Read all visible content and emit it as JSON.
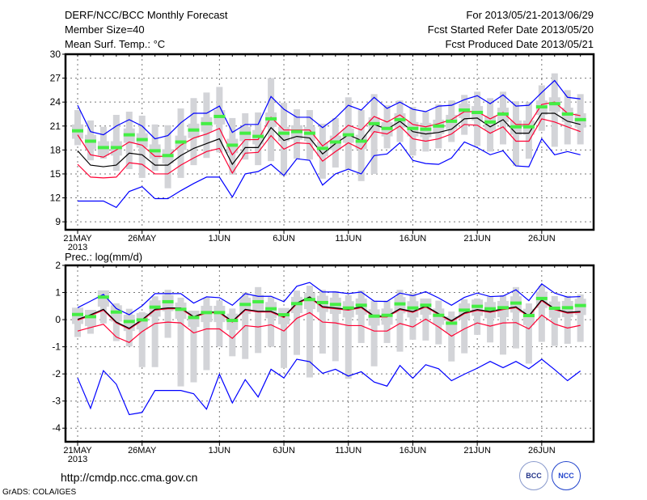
{
  "header": {
    "title": "DERF/NCC/BCC Monthly Forecast",
    "member_size": "Member Size=40",
    "variable": "Mean Surf. Temp.: °C",
    "period": "For 2013/05/21-2013/06/29",
    "started": "Fcst Started Refer Date 2013/05/20",
    "produced": "Fcst Produced Date 2013/05/21"
  },
  "footer": {
    "url": "http://cmdp.ncc.cma.gov.cn",
    "grads": "GrADS: COLA/IGES",
    "logo_bcc": "BCC",
    "logo_ncc": "NCC"
  },
  "colors": {
    "max_min": "#0000ff",
    "spread": "#ff0033",
    "mean": "#000000",
    "median": "#44ee44",
    "box": "#d3d4d8"
  },
  "chart_data": [
    {
      "type": "box",
      "title": "Mean Surf. Temp.: °C",
      "ylim": [
        8,
        30
      ],
      "yticks": [
        9,
        12,
        15,
        18,
        21,
        24,
        27,
        30
      ],
      "ytick_labels": [
        "9",
        "12",
        "15",
        "18",
        "21",
        "24",
        "27",
        "30"
      ],
      "xtick_days": [
        0,
        5,
        11,
        16,
        21,
        26,
        31,
        36
      ],
      "xtick_labels": [
        "21MAY",
        "26MAY",
        "1JUN",
        "6JUN",
        "11JUN",
        "16JUN",
        "21JUN",
        "26JUN"
      ],
      "xyear": "2013",
      "grid": true,
      "box_q3_offset": 0.8,
      "box_q1_offset": -1.0,
      "max": [
        23.6,
        20.3,
        19.9,
        21.0,
        21.8,
        21.0,
        19.4,
        19.8,
        21.4,
        22.6,
        22.6,
        23.5,
        20.2,
        21.2,
        21.2,
        24.7,
        23.1,
        22.1,
        22.1,
        20.8,
        22.0,
        23.6,
        23.0,
        24.6,
        23.2,
        24.0,
        23.1,
        22.8,
        23.5,
        23.6,
        24.3,
        24.8,
        23.8,
        24.9,
        23.5,
        23.6,
        25.2,
        26.7,
        24.6,
        24.4
      ],
      "min": [
        11.6,
        11.6,
        11.6,
        10.8,
        12.8,
        13.4,
        11.9,
        11.9,
        12.9,
        13.8,
        14.6,
        14.6,
        12.1,
        15.0,
        15.3,
        16.2,
        14.8,
        16.9,
        16.7,
        13.6,
        15.0,
        15.6,
        15.0,
        17.3,
        17.5,
        18.9,
        16.7,
        16.3,
        16.2,
        17.0,
        19.0,
        18.3,
        17.4,
        17.9,
        16.0,
        15.9,
        19.4,
        17.4,
        17.8,
        17.4
      ],
      "mean": [
        17.9,
        16.1,
        15.9,
        16.1,
        17.6,
        17.4,
        16.1,
        16.1,
        17.3,
        18.2,
        18.8,
        19.4,
        16.2,
        18.3,
        18.3,
        20.8,
        19.2,
        19.7,
        19.5,
        17.5,
        18.8,
        19.9,
        19.2,
        21.2,
        20.6,
        21.6,
        20.3,
        20.0,
        20.2,
        20.6,
        21.9,
        22.0,
        20.9,
        21.8,
        20.1,
        20.1,
        22.6,
        22.6,
        21.6,
        21.2
      ],
      "spread_upper": [
        19.9,
        17.4,
        17.1,
        18.0,
        19.0,
        18.6,
        17.2,
        17.2,
        18.6,
        19.5,
        20.0,
        20.7,
        17.4,
        19.3,
        19.3,
        22.1,
        20.5,
        20.5,
        20.5,
        18.5,
        19.7,
        21.1,
        20.5,
        22.2,
        21.5,
        22.4,
        21.2,
        20.9,
        21.3,
        21.8,
        22.8,
        22.8,
        21.9,
        22.7,
        21.2,
        21.2,
        23.7,
        24.0,
        22.6,
        22.3
      ],
      "spread_lower": [
        16.2,
        14.6,
        14.5,
        14.6,
        16.4,
        16.2,
        15.0,
        15.0,
        16.1,
        17.0,
        17.8,
        18.2,
        15.1,
        17.6,
        17.7,
        19.8,
        18.1,
        18.9,
        18.8,
        16.6,
        17.8,
        18.9,
        18.1,
        20.3,
        20.0,
        21.0,
        19.4,
        19.1,
        19.4,
        20.0,
        21.2,
        21.1,
        20.1,
        20.9,
        19.1,
        19.1,
        21.9,
        21.5,
        20.9,
        20.3
      ],
      "median": [
        20.4,
        19.1,
        18.3,
        18.3,
        19.9,
        19.3,
        17.9,
        17.3,
        19.0,
        20.5,
        21.3,
        22.2,
        18.6,
        20.1,
        19.7,
        21.9,
        20.1,
        20.3,
        20.1,
        18.2,
        19.0,
        19.9,
        19.1,
        21.3,
        20.7,
        21.8,
        20.7,
        20.6,
        21.0,
        21.6,
        23.0,
        22.7,
        21.5,
        22.5,
        20.9,
        20.9,
        23.4,
        23.8,
        22.5,
        21.8
      ],
      "whisker_top": [
        23.0,
        21.7,
        20.9,
        22.4,
        22.8,
        22.3,
        21.2,
        21.1,
        23.2,
        24.5,
        25.2,
        25.9,
        22.0,
        22.6,
        22.7,
        27.0,
        23.9,
        23.1,
        23.0,
        21.3,
        22.0,
        24.6,
        23.0,
        25.0,
        23.6,
        24.2,
        23.4,
        22.8,
        23.7,
        24.2,
        24.9,
        25.3,
        24.5,
        25.3,
        24.1,
        24.0,
        26.1,
        27.6,
        25.5,
        25.0
      ],
      "whisker_bottom": [
        18.6,
        16.7,
        16.9,
        15.4,
        15.6,
        14.5,
        15.4,
        13.2,
        14.5,
        16.1,
        17.0,
        17.7,
        14.9,
        16.8,
        16.1,
        16.6,
        14.8,
        16.9,
        16.8,
        14.4,
        15.8,
        15.6,
        14.1,
        15.0,
        18.2,
        19.0,
        17.3,
        17.8,
        18.2,
        19.0,
        19.9,
        18.5,
        17.8,
        18.7,
        16.0,
        16.9,
        20.4,
        18.4,
        18.7,
        18.7
      ]
    },
    {
      "type": "box",
      "title": "Prec.: log(mm/d)",
      "ylim": [
        -4.5,
        2
      ],
      "yticks": [
        -4,
        -3,
        -2,
        -1,
        0,
        1,
        2
      ],
      "ytick_labels": [
        "-4",
        "-3",
        "-2",
        "-1",
        "0",
        "1",
        "2"
      ],
      "xtick_days": [
        0,
        5,
        11,
        16,
        21,
        26,
        31,
        36
      ],
      "xtick_labels": [
        "21MAY",
        "26MAY",
        "1JUN",
        "6JUN",
        "11JUN",
        "16JUN",
        "21JUN",
        "26JUN"
      ],
      "xyear": "2013",
      "grid": true,
      "box_q3_offset": 0.25,
      "box_q1_offset": -0.35,
      "max": [
        0.44,
        0.68,
        0.93,
        0.41,
        0.18,
        0.51,
        0.96,
        0.96,
        0.96,
        0.61,
        0.84,
        0.81,
        0.53,
        0.96,
        0.86,
        0.86,
        0.66,
        1.23,
        1.37,
        1.02,
        1.02,
        0.96,
        1.02,
        0.68,
        0.67,
        0.98,
        0.88,
        1.03,
        0.8,
        0.53,
        0.82,
        0.98,
        0.85,
        0.87,
        1.1,
        0.7,
        1.32,
        0.98,
        0.83,
        0.85
      ],
      "min": [
        -2.15,
        -3.27,
        -1.88,
        -2.38,
        -3.5,
        -3.42,
        -2.61,
        -2.61,
        -2.61,
        -2.73,
        -3.3,
        -2.01,
        -3.07,
        -2.21,
        -2.85,
        -1.83,
        -2.15,
        -1.46,
        -1.55,
        -1.98,
        -1.83,
        -2.08,
        -1.92,
        -2.3,
        -2.45,
        -1.69,
        -2.16,
        -1.66,
        -1.81,
        -2.25,
        -2.01,
        -1.79,
        -1.54,
        -1.77,
        -1.54,
        -1.81,
        -1.46,
        -1.84,
        -2.25,
        -1.89
      ],
      "mean": [
        0.01,
        0.18,
        0.38,
        -0.09,
        -0.32,
        0.0,
        0.38,
        0.43,
        0.43,
        0.11,
        0.28,
        0.28,
        -0.06,
        0.38,
        0.31,
        0.31,
        0.11,
        0.61,
        0.84,
        0.48,
        0.43,
        0.38,
        0.47,
        0.13,
        0.13,
        0.4,
        0.3,
        0.5,
        0.22,
        -0.04,
        0.25,
        0.37,
        0.3,
        0.4,
        0.47,
        0.14,
        0.73,
        0.4,
        0.27,
        0.3
      ],
      "spread_upper": [
        -0.02,
        0.15,
        0.35,
        -0.12,
        -0.35,
        -0.03,
        0.35,
        0.4,
        0.4,
        0.08,
        0.25,
        0.25,
        -0.09,
        0.35,
        0.28,
        0.28,
        0.08,
        0.58,
        0.81,
        0.45,
        0.4,
        0.35,
        0.44,
        0.1,
        0.1,
        0.37,
        0.27,
        0.47,
        0.19,
        -0.07,
        0.22,
        0.34,
        0.27,
        0.37,
        0.44,
        0.11,
        0.7,
        0.37,
        0.24,
        0.27
      ],
      "spread_lower": [
        -0.42,
        -0.29,
        -0.17,
        -0.64,
        -0.84,
        -0.44,
        -0.14,
        -0.09,
        -0.12,
        -0.49,
        -0.34,
        -0.34,
        -0.69,
        -0.22,
        -0.27,
        -0.19,
        -0.42,
        0.05,
        0.26,
        -0.09,
        -0.12,
        -0.22,
        -0.22,
        -0.42,
        -0.42,
        -0.14,
        -0.27,
        0.02,
        -0.27,
        -0.61,
        -0.34,
        -0.12,
        -0.24,
        -0.12,
        -0.11,
        -0.34,
        0.17,
        -0.16,
        -0.31,
        -0.21
      ],
      "median": [
        0.19,
        0.11,
        0.83,
        0.28,
        -0.07,
        -0.01,
        0.46,
        0.66,
        0.38,
        0.08,
        0.26,
        0.26,
        -0.03,
        0.56,
        0.66,
        0.4,
        0.18,
        0.59,
        0.74,
        0.63,
        0.56,
        0.43,
        0.53,
        0.13,
        0.16,
        0.58,
        0.43,
        0.53,
        0.16,
        -0.13,
        0.35,
        0.49,
        0.4,
        0.44,
        0.61,
        0.15,
        0.78,
        0.42,
        0.44,
        0.52
      ],
      "whisker_top": [
        0.41,
        0.34,
        1.07,
        0.6,
        0.4,
        0.28,
        0.86,
        1.1,
        0.81,
        0.28,
        0.81,
        0.71,
        0.41,
        1.0,
        1.2,
        0.83,
        0.31,
        1.07,
        1.25,
        1.1,
        1.05,
        0.9,
        1.08,
        0.7,
        0.7,
        1.1,
        0.98,
        0.67,
        0.7,
        0.3,
        0.75,
        0.78,
        0.85,
        0.9,
        1.2,
        0.6,
        1.25,
        0.87,
        0.88,
        0.93
      ],
      "whisker_bottom": [
        -0.64,
        -0.52,
        -0.14,
        -0.79,
        -0.99,
        -1.75,
        -1.75,
        -0.67,
        -2.46,
        -2.31,
        -1.86,
        -0.99,
        -1.35,
        -1.45,
        -1.23,
        -1.0,
        -1.78,
        -1.3,
        -2.13,
        -1.25,
        -1.53,
        -2.18,
        -0.86,
        -1.72,
        -0.86,
        -1.18,
        -0.74,
        -0.77,
        -0.91,
        -1.54,
        -1.24,
        -0.56,
        -0.84,
        -1.29,
        -1.06,
        -1.62,
        -0.82,
        -0.97,
        -0.89,
        -0.82
      ]
    }
  ]
}
